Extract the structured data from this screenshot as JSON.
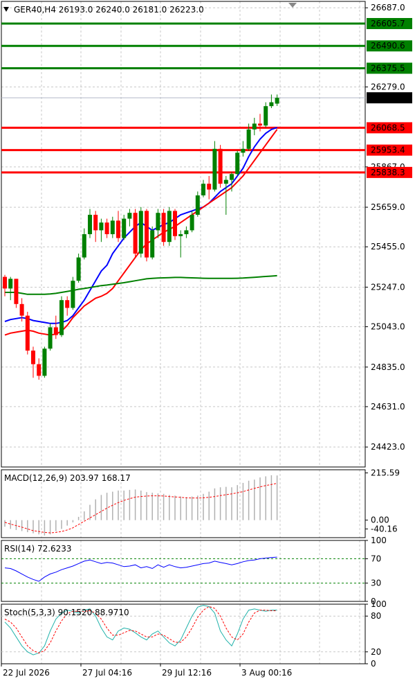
{
  "chart_data": [
    {
      "type": "candlestick",
      "title": "GER40,H4  26193.0  26240.0  26181.0  26223.0",
      "symbol": "GER40,H4",
      "ohlc_header": [
        "26193.0",
        "26240.0",
        "26181.0",
        "26223.0"
      ],
      "ylim": [
        24320,
        26720
      ],
      "y_ticks": [
        "26687.0",
        "26279.0",
        "25867.0",
        "25659.0",
        "25455.0",
        "25247.0",
        "25043.0",
        "24835.0",
        "24631.0",
        "24423.0"
      ],
      "y_tick_values": [
        26687,
        26279,
        25867,
        25659,
        25455,
        25247,
        25043,
        24835,
        24631,
        24423
      ],
      "current_price": {
        "label": "26223.0",
        "value": 26223,
        "color": "#000000"
      },
      "levels": [
        {
          "label": "26605.7",
          "value": 26605.7,
          "color": "#008000"
        },
        {
          "label": "26490.6",
          "value": 26490.6,
          "color": "#008000"
        },
        {
          "label": "26375.5",
          "value": 26375.5,
          "color": "#008000"
        },
        {
          "label": "26068.5",
          "value": 26068.5,
          "color": "#ff0000"
        },
        {
          "label": "25953.4",
          "value": 25953.4,
          "color": "#ff0000"
        },
        {
          "label": "25838.3",
          "value": 25838.3,
          "color": "#ff0000"
        }
      ],
      "candles": [
        [
          25300,
          25310,
          25200,
          25240
        ],
        [
          25240,
          25300,
          25180,
          25290
        ],
        [
          25290,
          25290,
          25140,
          25160
        ],
        [
          25160,
          25190,
          25070,
          25100
        ],
        [
          25100,
          25120,
          24900,
          24920
        ],
        [
          24920,
          24940,
          24780,
          24850
        ],
        [
          24850,
          24880,
          24770,
          24790
        ],
        [
          24790,
          24940,
          24780,
          24930
        ],
        [
          24930,
          25060,
          24920,
          25040
        ],
        [
          25040,
          25100,
          24980,
          25000
        ],
        [
          25000,
          25200,
          24990,
          25180
        ],
        [
          25180,
          25200,
          25100,
          25140
        ],
        [
          25140,
          25300,
          25130,
          25280
        ],
        [
          25280,
          25420,
          25270,
          25400
        ],
        [
          25400,
          25550,
          25390,
          25520
        ],
        [
          25520,
          25650,
          25500,
          25620
        ],
        [
          25620,
          25640,
          25480,
          25540
        ],
        [
          25540,
          25600,
          25480,
          25580
        ],
        [
          25580,
          25600,
          25500,
          25520
        ],
        [
          25520,
          25610,
          25500,
          25590
        ],
        [
          25590,
          25640,
          25480,
          25500
        ],
        [
          25500,
          25620,
          25490,
          25600
        ],
        [
          25600,
          25650,
          25560,
          25630
        ],
        [
          25630,
          25650,
          25400,
          25420
        ],
        [
          25420,
          25660,
          25400,
          25640
        ],
        [
          25640,
          25650,
          25380,
          25400
        ],
        [
          25400,
          25560,
          25390,
          25540
        ],
        [
          25540,
          25650,
          25500,
          25630
        ],
        [
          25630,
          25650,
          25460,
          25480
        ],
        [
          25480,
          25660,
          25460,
          25640
        ],
        [
          25640,
          25650,
          25490,
          25510
        ],
        [
          25510,
          25540,
          25400,
          25520
        ],
        [
          25520,
          25560,
          25500,
          25540
        ],
        [
          25540,
          25640,
          25530,
          25620
        ],
        [
          25620,
          25740,
          25610,
          25720
        ],
        [
          25720,
          25800,
          25710,
          25780
        ],
        [
          25780,
          25820,
          25700,
          25750
        ],
        [
          25750,
          26000,
          25740,
          25960
        ],
        [
          25960,
          25980,
          25760,
          25780
        ],
        [
          25780,
          25820,
          25620,
          25800
        ],
        [
          25800,
          25840,
          25740,
          25830
        ],
        [
          25830,
          25950,
          25820,
          25940
        ],
        [
          25940,
          26000,
          25920,
          25960
        ],
        [
          25960,
          26090,
          25950,
          26060
        ],
        [
          26060,
          26120,
          26030,
          26090
        ],
        [
          26090,
          26140,
          26050,
          26080
        ],
        [
          26080,
          26200,
          26070,
          26180
        ],
        [
          26180,
          26240,
          26170,
          26200
        ],
        [
          26193,
          26240,
          26181,
          26223
        ]
      ],
      "ma_series": [
        {
          "color": "#0000ff",
          "values": [
            25070,
            25080,
            25085,
            25090,
            25085,
            25075,
            25070,
            25065,
            25060,
            25060,
            25065,
            25075,
            25100,
            25140,
            25180,
            25230,
            25280,
            25330,
            25360,
            25420,
            25460,
            25500,
            25530,
            25560,
            25580,
            25560,
            25540,
            25555,
            25570,
            25580,
            25600,
            25620,
            25630,
            25640,
            25650,
            25660,
            25680,
            25710,
            25740,
            25760,
            25780,
            25820,
            25860,
            25920,
            25970,
            26010,
            26040,
            26060,
            26070
          ]
        },
        {
          "color": "#ff0000",
          "values": [
            25000,
            25010,
            25015,
            25020,
            25025,
            25020,
            25010,
            25005,
            25000,
            25005,
            25020,
            25050,
            25090,
            25120,
            25150,
            25170,
            25190,
            25200,
            25215,
            25240,
            25280,
            25320,
            25360,
            25400,
            25440,
            25470,
            25490,
            25510,
            25530,
            25545,
            25560,
            25580,
            25600,
            25620,
            25640,
            25660,
            25680,
            25700,
            25720,
            25740,
            25760,
            25790,
            25820,
            25860,
            25900,
            25940,
            25980,
            26020,
            26060
          ]
        },
        {
          "color": "#008000",
          "values": [
            25220,
            25220,
            25220,
            25215,
            25210,
            25210,
            25210,
            25210,
            25212,
            25215,
            25220,
            25225,
            25230,
            25236,
            25240,
            25245,
            25250,
            25255,
            25258,
            25262,
            25266,
            25270,
            25275,
            25280,
            25285,
            25290,
            25292,
            25294,
            25295,
            25296,
            25297,
            25297,
            25296,
            25295,
            25294,
            25293,
            25292,
            25292,
            25292,
            25292,
            25292,
            25293,
            25294,
            25296,
            25298,
            25300,
            25302,
            25304,
            25306
          ]
        }
      ]
    },
    {
      "type": "histogram",
      "title": "MACD(12,26,9) 203.97 168.17",
      "ylim": [
        -80,
        230
      ],
      "y_ticks": [
        "215.59",
        "0.00",
        "-40.16"
      ],
      "y_tick_values": [
        215.59,
        0,
        -40.16
      ],
      "histogram": [
        -30,
        -40,
        -45,
        -50,
        -55,
        -60,
        -65,
        -70,
        -65,
        -50,
        -40,
        -25,
        -10,
        15,
        40,
        70,
        95,
        115,
        125,
        130,
        135,
        135,
        138,
        140,
        135,
        128,
        125,
        122,
        120,
        115,
        112,
        108,
        105,
        108,
        112,
        120,
        130,
        145,
        150,
        152,
        150,
        160,
        170,
        180,
        185,
        195,
        200,
        205,
        204
      ],
      "signal": [
        -10,
        -18,
        -25,
        -32,
        -40,
        -48,
        -52,
        -56,
        -58,
        -56,
        -52,
        -45,
        -35,
        -20,
        -5,
        10,
        25,
        40,
        55,
        68,
        80,
        90,
        98,
        105,
        108,
        110,
        111,
        111,
        110,
        108,
        106,
        104,
        102,
        101,
        101,
        102,
        104,
        108,
        112,
        116,
        120,
        125,
        130,
        138,
        145,
        152,
        158,
        163,
        168
      ]
    },
    {
      "type": "line",
      "title": "RSI(14) 72.6233",
      "ylim": [
        0,
        100
      ],
      "y_ticks": [
        "100",
        "70",
        "30",
        "0"
      ],
      "y_tick_values": [
        100,
        70,
        30,
        0
      ],
      "levels": [
        70,
        30
      ],
      "values": [
        55,
        54,
        50,
        45,
        40,
        36,
        33,
        40,
        45,
        48,
        52,
        55,
        58,
        62,
        66,
        68,
        65,
        62,
        64,
        63,
        60,
        57,
        58,
        60,
        55,
        57,
        54,
        60,
        56,
        60,
        57,
        55,
        56,
        58,
        60,
        62,
        63,
        66,
        64,
        62,
        60,
        62,
        65,
        67,
        68,
        70,
        71,
        72,
        72.6
      ]
    },
    {
      "type": "line",
      "title": "Stoch(5,3,3) 90.1520 88.9710",
      "ylim": [
        0,
        100
      ],
      "y_ticks": [
        "100",
        "80",
        "20",
        "0"
      ],
      "y_tick_values": [
        100,
        80,
        20,
        0
      ],
      "levels": [
        80,
        20
      ],
      "k": [
        70,
        60,
        45,
        30,
        20,
        15,
        18,
        30,
        55,
        75,
        85,
        90,
        88,
        85,
        90,
        92,
        80,
        60,
        45,
        40,
        55,
        60,
        58,
        52,
        45,
        40,
        50,
        55,
        45,
        35,
        30,
        40,
        60,
        80,
        95,
        98,
        96,
        85,
        55,
        40,
        30,
        50,
        75,
        90,
        92,
        90,
        88,
        90,
        90.15
      ],
      "d": [
        75,
        70,
        60,
        45,
        30,
        22,
        18,
        22,
        35,
        55,
        72,
        84,
        88,
        88,
        88,
        89,
        85,
        75,
        60,
        48,
        48,
        52,
        56,
        55,
        50,
        45,
        45,
        50,
        48,
        42,
        36,
        36,
        45,
        60,
        78,
        90,
        96,
        93,
        80,
        60,
        45,
        40,
        50,
        70,
        85,
        90,
        90,
        89,
        88.97
      ]
    }
  ],
  "time_axis": {
    "labels": [
      "22 Jul 2026",
      "27 Jul 04:16",
      "29 Jul 12:16",
      "3 Aug 00:16"
    ],
    "candle_index": [
      0,
      14,
      28,
      42
    ]
  },
  "colors": {
    "bull": "#008000",
    "bear": "#ff0000",
    "indicator_line": "#0000ff",
    "signal": "#ff0000",
    "histogram": "#b0b0b0",
    "stoch_k": "#20b2aa"
  }
}
